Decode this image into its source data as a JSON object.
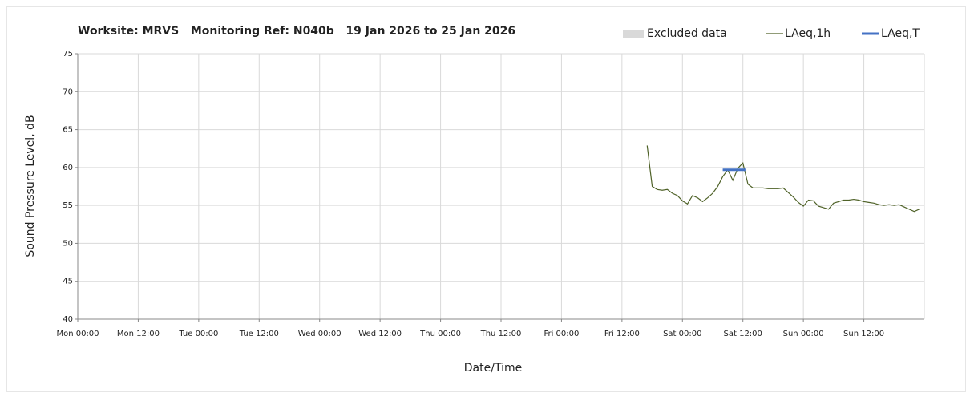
{
  "chart_data": {
    "type": "line",
    "title": "Worksite: MRVS   Monitoring Ref: N040b   19 Jan 2026 to 25 Jan 2026",
    "xlabel": "Date/Time",
    "ylabel": "Sound Pressure Level, dB",
    "xlim": [
      0,
      168
    ],
    "ylim": [
      40,
      75
    ],
    "xticks": [
      {
        "value": 0,
        "label": "Mon 00:00"
      },
      {
        "value": 12,
        "label": "Mon 12:00"
      },
      {
        "value": 24,
        "label": "Tue 00:00"
      },
      {
        "value": 36,
        "label": "Tue 12:00"
      },
      {
        "value": 48,
        "label": "Wed 00:00"
      },
      {
        "value": 60,
        "label": "Wed 12:00"
      },
      {
        "value": 72,
        "label": "Thu 00:00"
      },
      {
        "value": 84,
        "label": "Thu 12:00"
      },
      {
        "value": 96,
        "label": "Fri 00:00"
      },
      {
        "value": 108,
        "label": "Fri 12:00"
      },
      {
        "value": 120,
        "label": "Sat 00:00"
      },
      {
        "value": 132,
        "label": "Sat 12:00"
      },
      {
        "value": 144,
        "label": "Sun 00:00"
      },
      {
        "value": 156,
        "label": "Sun 12:00"
      }
    ],
    "yticks": [
      40,
      45,
      50,
      55,
      60,
      65,
      70,
      75
    ],
    "grid": true,
    "legend": "top-right",
    "series": [
      {
        "name": "Excluded data",
        "color": "#d9d9d9",
        "style": "area",
        "x": [],
        "values": []
      },
      {
        "name": "LAeq,1h",
        "color": "#4f6228",
        "style": "line",
        "x": [
          113,
          114,
          115,
          116,
          117,
          118,
          119,
          120,
          121,
          122,
          123,
          124,
          125,
          126,
          127,
          128,
          129,
          130,
          131,
          132,
          133,
          134,
          135,
          136,
          137,
          138,
          139,
          140,
          141,
          142,
          143,
          144,
          145,
          146,
          147,
          148,
          149,
          150,
          151,
          152,
          153,
          154,
          155,
          156,
          157,
          158,
          159,
          160,
          161,
          162,
          163,
          164,
          165,
          166,
          167
        ],
        "values": [
          62.9,
          57.5,
          57.1,
          57.0,
          57.1,
          56.6,
          56.3,
          55.6,
          55.2,
          56.3,
          56.0,
          55.5,
          56.0,
          56.6,
          57.5,
          58.8,
          59.7,
          58.3,
          59.9,
          60.6,
          57.8,
          57.3,
          57.3,
          57.3,
          57.2,
          57.2,
          57.2,
          57.3,
          56.7,
          56.1,
          55.4,
          54.9,
          55.7,
          55.6,
          54.9,
          54.7,
          54.5,
          55.3,
          55.5,
          55.7,
          55.7,
          55.8,
          55.7,
          55.5,
          55.4,
          55.3,
          55.1,
          55.0,
          55.1,
          55.0,
          55.1,
          54.8,
          54.5,
          54.2,
          54.5
        ]
      },
      {
        "name": "LAeq,T",
        "color": "#4472c4",
        "style": "line",
        "x": [
          128,
          132.5
        ],
        "values": [
          59.7,
          59.7
        ]
      }
    ]
  }
}
